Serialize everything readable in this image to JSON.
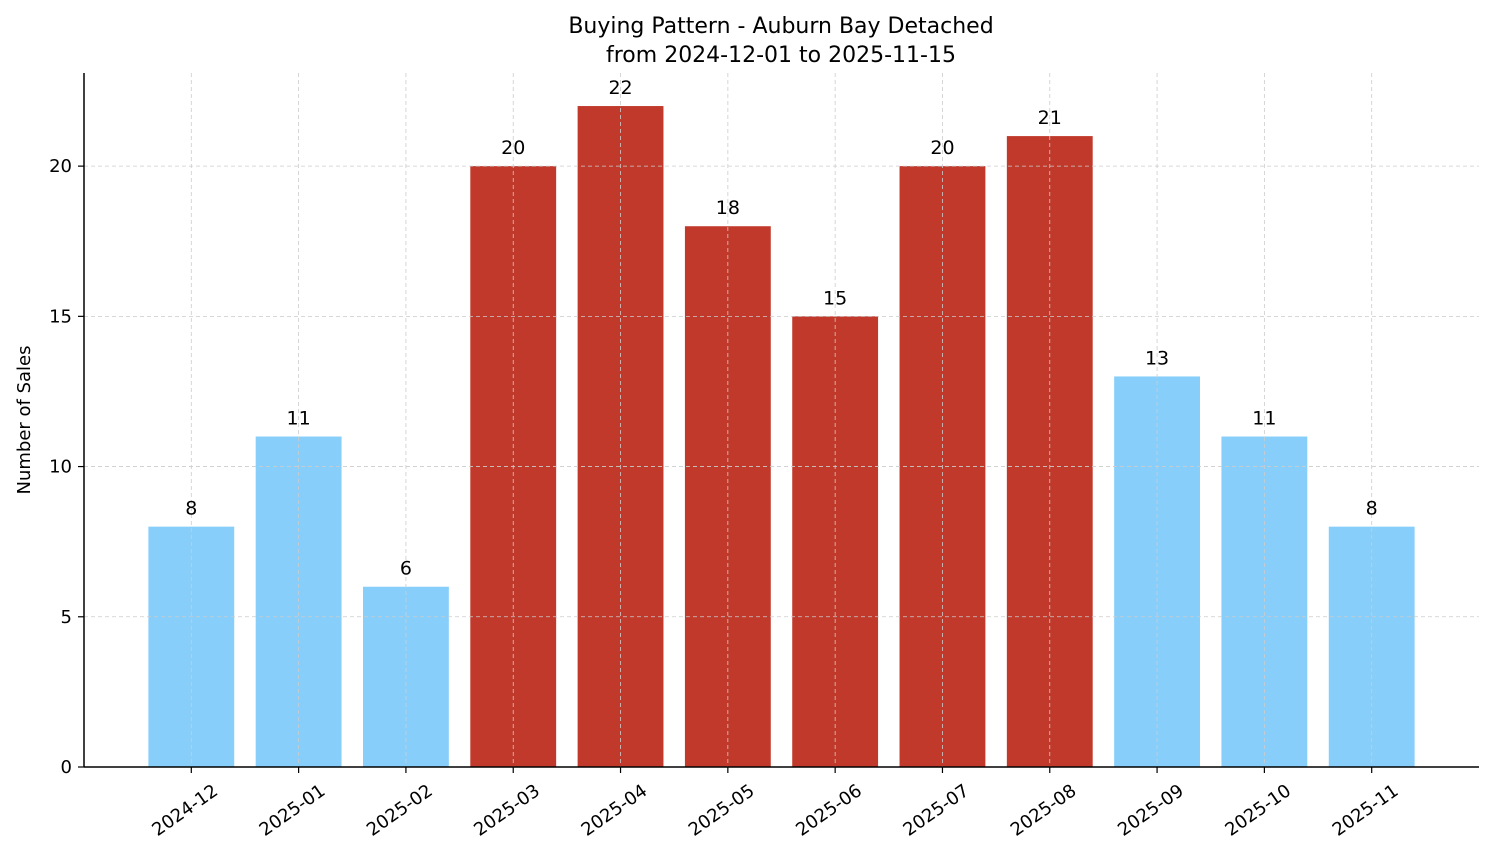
{
  "chart_data": {
    "type": "bar",
    "title": "Buying Pattern - Auburn Bay Detached",
    "subtitle": "from 2024-12-01 to 2025-11-15",
    "xlabel": "",
    "ylabel": "Number of Sales",
    "categories": [
      "2024-12",
      "2025-01",
      "2025-02",
      "2025-03",
      "2025-04",
      "2025-05",
      "2025-06",
      "2025-07",
      "2025-08",
      "2025-09",
      "2025-10",
      "2025-11"
    ],
    "values": [
      8,
      11,
      6,
      20,
      22,
      18,
      15,
      20,
      21,
      13,
      11,
      8
    ],
    "highlighted": [
      false,
      false,
      false,
      true,
      true,
      true,
      true,
      true,
      true,
      false,
      false,
      false
    ],
    "colors": {
      "normal": "#87CEFA",
      "highlight": "#C0392B"
    },
    "ylim": [
      0,
      23.1
    ],
    "yticks": [
      0,
      5,
      10,
      15,
      20
    ],
    "grid": true,
    "data_labels": true
  }
}
